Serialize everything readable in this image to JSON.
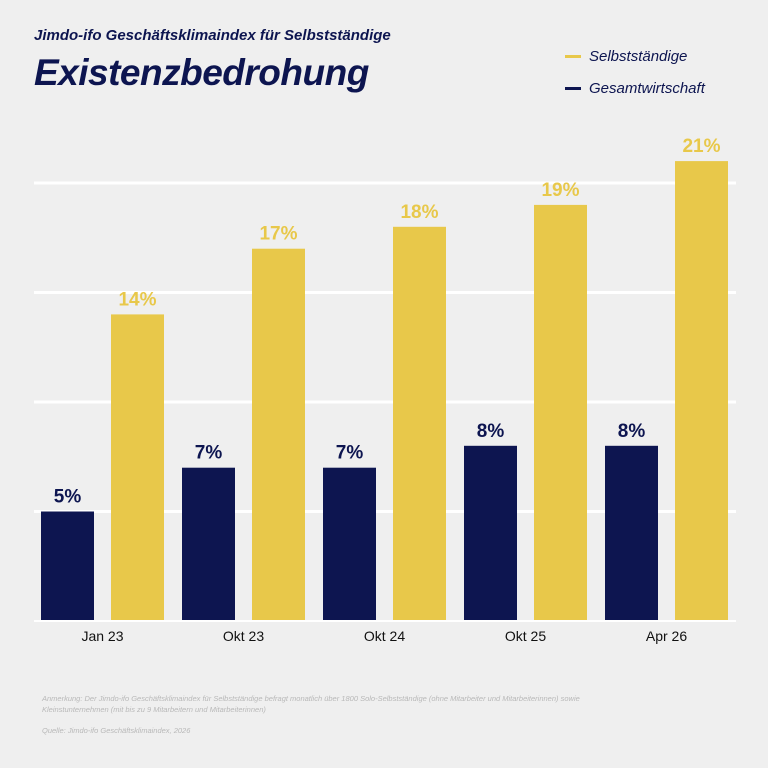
{
  "header": {
    "subtitle": "Jimdo-ifo Geschäftsklimaindex für Selbstständige",
    "title": "Existenzbedrohung"
  },
  "legend": {
    "items": [
      {
        "label": "Selbstständige",
        "color": "#e8c84a"
      },
      {
        "label": "Gesamtwirtschaft",
        "color": "#0d1550"
      }
    ]
  },
  "footer": {
    "note": "Anmerkung: Der Jimdo-ifo Geschäftsklimaindex für Selbstständige befragt monatlich über 1800 Solo-Selbstständige (ohne Mitarbeiter und Mitarbeiterinnen) sowie Kleinstunternehmen (mit bis zu 9 Mitarbeitern und Mitarbeiterinnen)",
    "source": "Quelle: Jimdo-ifo Geschäftsklimaindex, 2026"
  },
  "chart_data": {
    "type": "bar",
    "categories": [
      "Jan 23",
      "Okt 23",
      "Okt 24",
      "Okt 25",
      "Apr 26"
    ],
    "series": [
      {
        "name": "Gesamtwirtschaft",
        "values": [
          5,
          7,
          7,
          8,
          8
        ],
        "labels": [
          "5%",
          "7%",
          "7%",
          "8%",
          "8%"
        ],
        "color": "#0d1550"
      },
      {
        "name": "Selbstständige",
        "values": [
          14,
          17,
          18,
          19,
          21
        ],
        "labels": [
          "14%",
          "17%",
          "18%",
          "19%",
          "21%"
        ],
        "color": "#e8c84a"
      }
    ],
    "ylim": [
      0,
      20
    ],
    "yticks": [
      0,
      5,
      10,
      15,
      20
    ],
    "grid": true,
    "legend_position": "top-right"
  }
}
